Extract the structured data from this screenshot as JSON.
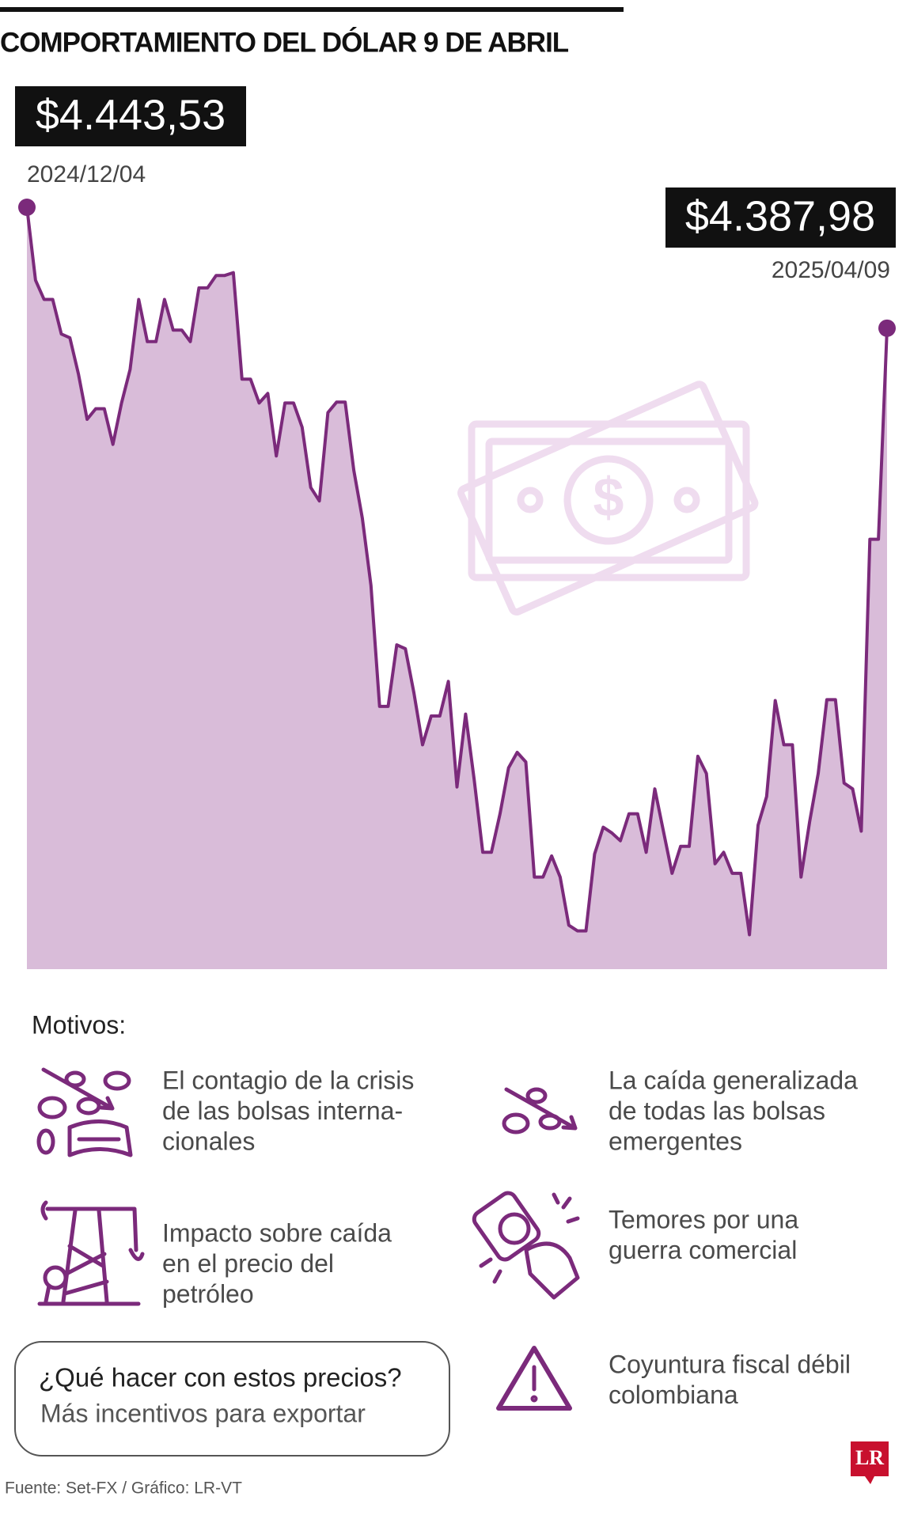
{
  "chart_data": {
    "type": "area",
    "title": "COMPORTAMIENTO DEL DÓLAR 9 DE ABRIL",
    "categories": [
      "2024/12/04",
      null,
      null,
      null,
      null,
      null,
      null,
      null,
      null,
      null,
      null,
      null,
      null,
      null,
      null,
      null,
      null,
      null,
      null,
      null,
      null,
      null,
      null,
      null,
      null,
      null,
      null,
      null,
      null,
      null,
      null,
      null,
      null,
      null,
      null,
      null,
      null,
      null,
      null,
      null,
      null,
      null,
      null,
      null,
      null,
      null,
      null,
      null,
      null,
      null,
      null,
      null,
      null,
      null,
      null,
      null,
      null,
      null,
      null,
      null,
      null,
      null,
      null,
      null,
      null,
      null,
      null,
      null,
      null,
      null,
      null,
      null,
      null,
      null,
      null,
      null,
      null,
      null,
      null,
      null,
      null,
      null,
      null,
      null,
      null,
      null,
      null,
      null,
      null,
      null,
      null,
      null,
      null,
      null,
      null,
      null,
      null,
      null,
      null,
      null,
      "2025/04/09"
    ],
    "values": [
      4443.53,
      4410.0,
      4401.2,
      4401.2,
      4385.3,
      4383.6,
      4366.8,
      4346.1,
      4351.0,
      4351.0,
      4334.6,
      4353.6,
      4369.0,
      4401.2,
      4381.8,
      4381.8,
      4401.2,
      4387.1,
      4387.1,
      4381.8,
      4406.5,
      4406.5,
      4412.2,
      4412.2,
      4413.5,
      4364.6,
      4364.6,
      4353.6,
      4358.0,
      4329.3,
      4353.6,
      4353.6,
      4342.5,
      4314.8,
      4308.6,
      4349.2,
      4354.0,
      4354.0,
      4322.7,
      4300.7,
      4269.8,
      4214.2,
      4214.2,
      4242.5,
      4240.7,
      4220.4,
      4196.6,
      4209.8,
      4209.8,
      4225.7,
      4177.2,
      4210.7,
      4180.7,
      4147.2,
      4147.2,
      4164.9,
      4186.0,
      4193.1,
      4188.7,
      4135.8,
      4135.8,
      4145.5,
      4135.8,
      4113.7,
      4111.1,
      4111.1,
      4146.4,
      4158.7,
      4156.1,
      4152.5,
      4164.9,
      4164.9,
      4147.2,
      4176.3,
      4156.9,
      4137.5,
      4149.9,
      4149.9,
      4191.3,
      4183.4,
      4141.9,
      4147.2,
      4137.5,
      4137.5,
      4109.3,
      4159.6,
      4172.8,
      4216.9,
      4196.6,
      4196.6,
      4135.8,
      4161.3,
      4183.4,
      4217.3,
      4217.3,
      4179.0,
      4176.3,
      4156.9,
      4291.0,
      4291.0,
      4387.98
    ],
    "value_labels": [
      "$4.443,53",
      null,
      null,
      null,
      null,
      null,
      null,
      null,
      null,
      null,
      null,
      null,
      null,
      null,
      null,
      null,
      null,
      null,
      null,
      null,
      null,
      null,
      null,
      null,
      null,
      null,
      null,
      null,
      null,
      null,
      null,
      null,
      null,
      null,
      null,
      null,
      null,
      null,
      null,
      null,
      null,
      null,
      null,
      null,
      null,
      null,
      null,
      null,
      null,
      null,
      null,
      null,
      null,
      null,
      null,
      null,
      null,
      null,
      null,
      null,
      null,
      null,
      null,
      null,
      null,
      null,
      null,
      null,
      null,
      null,
      null,
      null,
      null,
      null,
      null,
      null,
      null,
      null,
      null,
      null,
      null,
      null,
      null,
      null,
      null,
      null,
      null,
      null,
      null,
      null,
      null,
      null,
      null,
      null,
      null,
      null,
      null,
      null,
      null,
      null,
      "$4.387,98"
    ],
    "ylim": [
      4093.5,
      4443.53
    ],
    "color": "#7b2a7b",
    "fill_color": "#d9bcd9"
  },
  "motivos": {
    "title": "Motivos:",
    "items": [
      {
        "lines": [
          "El contagio de la crisis",
          "de las bolsas interna-",
          "cionales"
        ]
      },
      {
        "lines": [
          "La caída generalizada",
          "de todas las bolsas",
          "emergentes"
        ]
      },
      {
        "lines": [
          "Impacto sobre caída",
          "en el precio del",
          "petróleo"
        ]
      },
      {
        "lines": [
          "Temores por una",
          "guerra comercial"
        ]
      },
      {
        "lines": [
          "Coyuntura fiscal débil",
          "colombiana"
        ]
      }
    ]
  },
  "callout": {
    "question": "¿Qué hacer con estos precios?",
    "answer": "Más incentivos para exportar"
  },
  "source": "Fuente: Set-FX / Gráfico: LR-VT",
  "logo": "LR"
}
